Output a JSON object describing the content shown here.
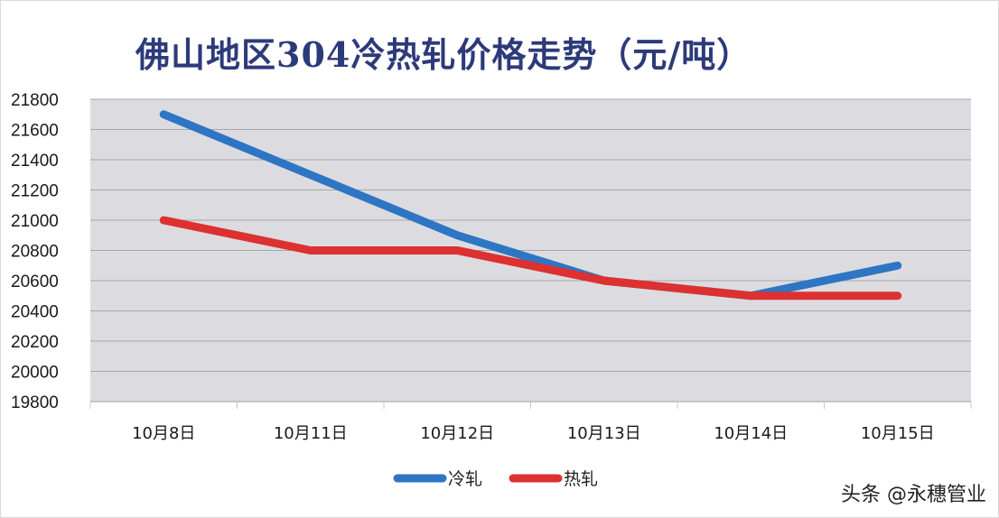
{
  "chart_data": {
    "type": "line",
    "title": "佛山地区304冷热轧价格走势（元/吨）",
    "categories": [
      "10月8日",
      "10月11日",
      "10月12日",
      "10月13日",
      "10月14日",
      "10月15日"
    ],
    "series": [
      {
        "name": "冷轧",
        "color": "#2e75c4",
        "values": [
          21700,
          21300,
          20900,
          20600,
          20500,
          20700
        ]
      },
      {
        "name": "热轧",
        "color": "#dc3130",
        "values": [
          21000,
          20800,
          20800,
          20600,
          20500,
          20500
        ]
      }
    ],
    "ylim": [
      19800,
      21800
    ],
    "yticks": [
      19800,
      20000,
      20200,
      20400,
      20600,
      20800,
      21000,
      21200,
      21400,
      21600,
      21800
    ],
    "grid": true,
    "legend": "bottom",
    "plot_background": "#dcdce0"
  },
  "watermark": "头条 @永穗管业"
}
